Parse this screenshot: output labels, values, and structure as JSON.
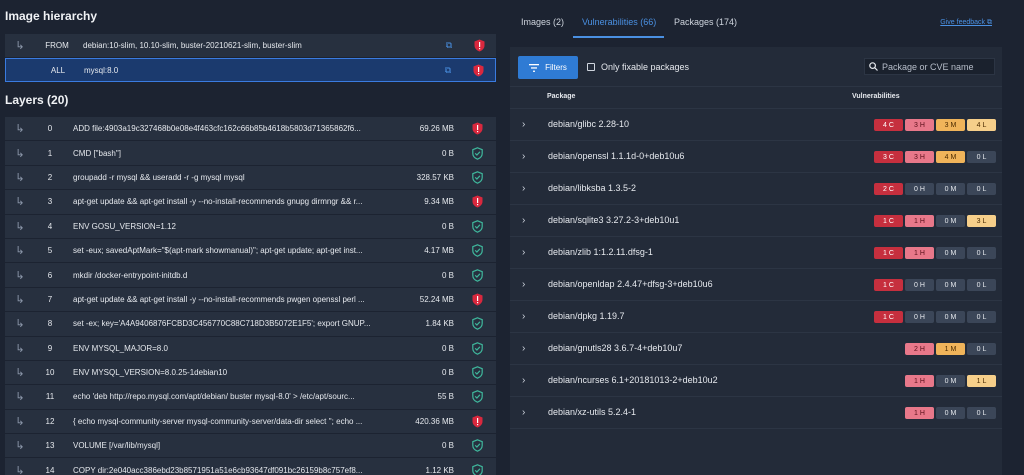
{
  "hierarchy": {
    "title": "Image hierarchy",
    "rows": [
      {
        "kind": "FROM",
        "value": "debian:10-slim, 10.10-slim, buster-20210621-slim, buster-slim",
        "status": "vuln"
      },
      {
        "kind": "ALL",
        "value": "mysql:8.0",
        "status": "vuln",
        "selected": true
      }
    ]
  },
  "layers": {
    "title": "Layers (20)",
    "rows": [
      {
        "idx": "0",
        "cmd": "ADD file:4903a19c327468b0e08e4f463cfc162c66b85b4618b5803d71365862f6...",
        "size": "69.26 MB",
        "status": "vuln"
      },
      {
        "idx": "1",
        "cmd": "CMD [\"bash\"]",
        "size": "0 B",
        "status": "ok"
      },
      {
        "idx": "2",
        "cmd": "groupadd -r mysql && useradd -r -g mysql mysql",
        "size": "328.57 KB",
        "status": "ok"
      },
      {
        "idx": "3",
        "cmd": "apt-get update && apt-get install -y --no-install-recommends gnupg dirmngr && r...",
        "size": "9.34 MB",
        "status": "vuln"
      },
      {
        "idx": "4",
        "cmd": "ENV GOSU_VERSION=1.12",
        "size": "0 B",
        "status": "ok"
      },
      {
        "idx": "5",
        "cmd": "set -eux; savedAptMark=\"$(apt-mark showmanual)\"; apt-get update; apt-get inst...",
        "size": "4.17 MB",
        "status": "ok"
      },
      {
        "idx": "6",
        "cmd": "mkdir /docker-entrypoint-initdb.d",
        "size": "0 B",
        "status": "ok"
      },
      {
        "idx": "7",
        "cmd": "apt-get update && apt-get install -y --no-install-recommends pwgen openssl perl ...",
        "size": "52.24 MB",
        "status": "vuln"
      },
      {
        "idx": "8",
        "cmd": "set -ex; key='A4A9406876FCBD3C456770C88C718D3B5072E1F5'; export GNUP...",
        "size": "1.84 KB",
        "status": "ok"
      },
      {
        "idx": "9",
        "cmd": "ENV MYSQL_MAJOR=8.0",
        "size": "0 B",
        "status": "ok"
      },
      {
        "idx": "10",
        "cmd": "ENV MYSQL_VERSION=8.0.25-1debian10",
        "size": "0 B",
        "status": "ok"
      },
      {
        "idx": "11",
        "cmd": "echo 'deb http://repo.mysql.com/apt/debian/ buster mysql-8.0' > /etc/apt/sourc...",
        "size": "55 B",
        "status": "ok"
      },
      {
        "idx": "12",
        "cmd": "{ echo mysql-community-server mysql-community-server/data-dir select ''; echo ...",
        "size": "420.36 MB",
        "status": "vuln"
      },
      {
        "idx": "13",
        "cmd": "VOLUME [/var/lib/mysql]",
        "size": "0 B",
        "status": "ok"
      },
      {
        "idx": "14",
        "cmd": "COPY dir:2e040acc386ebd23b8571951a51e6cb93647df091bc26159b8c757ef8...",
        "size": "1.12 KB",
        "status": "ok"
      }
    ]
  },
  "tabs": [
    {
      "label": "Images (2)",
      "active": false
    },
    {
      "label": "Vulnerabilities (66)",
      "active": true
    },
    {
      "label": "Packages (174)",
      "active": false
    }
  ],
  "feedback_label": "Give feedback",
  "toolbar": {
    "filters_label": "Filters",
    "fixable_label": "Only fixable packages",
    "search_placeholder": "Package or CVE name"
  },
  "table": {
    "col_package": "Package",
    "col_vulns": "Vulnerabilities",
    "rows": [
      {
        "pkg": "debian/glibc 2.28-10",
        "c": "4 C",
        "h": "3 H",
        "m": "3 M",
        "l": "4 L"
      },
      {
        "pkg": "debian/openssl 1.1.1d-0+deb10u6",
        "c": "3 C",
        "h": "3 H",
        "m": "4 M",
        "l": "0 L"
      },
      {
        "pkg": "debian/libksba 1.3.5-2",
        "c": "2 C",
        "h": "0 H",
        "m": "0 M",
        "l": "0 L"
      },
      {
        "pkg": "debian/sqlite3 3.27.2-3+deb10u1",
        "c": "1 C",
        "h": "1 H",
        "m": "0 M",
        "l": "3 L"
      },
      {
        "pkg": "debian/zlib 1:1.2.11.dfsg-1",
        "c": "1 C",
        "h": "1 H",
        "m": "0 M",
        "l": "0 L"
      },
      {
        "pkg": "debian/openldap 2.4.47+dfsg-3+deb10u6",
        "c": "1 C",
        "h": "0 H",
        "m": "0 M",
        "l": "0 L"
      },
      {
        "pkg": "debian/dpkg 1.19.7",
        "c": "1 C",
        "h": "0 H",
        "m": "0 M",
        "l": "0 L"
      },
      {
        "pkg": "debian/gnutls28 3.6.7-4+deb10u7",
        "c": "",
        "h": "2 H",
        "m": "1 M",
        "l": "0 L"
      },
      {
        "pkg": "debian/ncurses 6.1+20181013-2+deb10u2",
        "c": "",
        "h": "1 H",
        "m": "0 M",
        "l": "1 L"
      },
      {
        "pkg": "debian/xz-utils 5.2.4-1",
        "c": "",
        "h": "1 H",
        "m": "0 M",
        "l": "0 L"
      }
    ]
  },
  "colors": {
    "critical": "#c62f3e",
    "high": "#e8788a",
    "medium": "#f0b45a",
    "low": "#f6cf8a",
    "zero": "#3b4658",
    "accent": "#4a90e2",
    "ok_shield": "#3fb79c",
    "vuln_shield": "#d9283e"
  }
}
